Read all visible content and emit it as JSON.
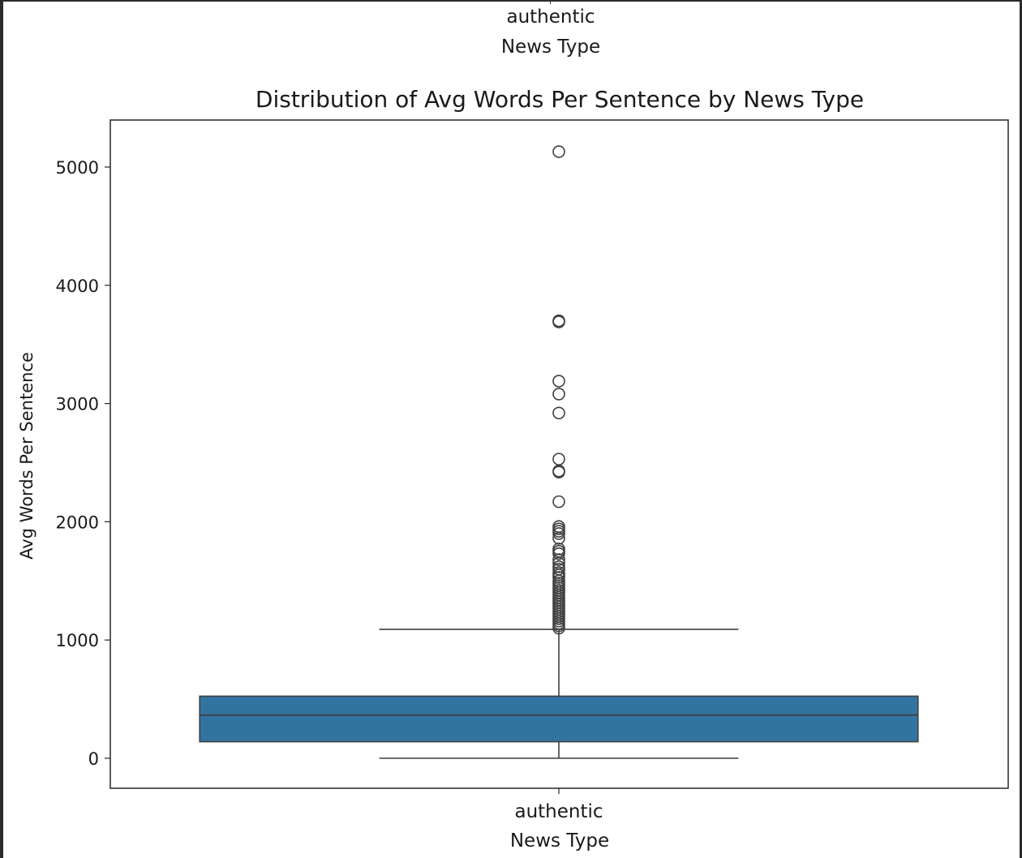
{
  "previous_plot": {
    "tick_label": "authentic",
    "xlabel": "News Type"
  },
  "chart_data": {
    "type": "box",
    "title": "Distribution of Avg Words Per Sentence by News Type",
    "xlabel": "News Type",
    "ylabel": "Avg Words Per Sentence",
    "categories": [
      "authentic"
    ],
    "ylim": [
      -250,
      5400
    ],
    "yticks": [
      0,
      1000,
      2000,
      3000,
      4000,
      5000
    ],
    "box_color": "#3274a1",
    "boxes": [
      {
        "category": "authentic",
        "whisker_low": 0,
        "q1": 140,
        "median": 365,
        "q3": 525,
        "whisker_high": 1090,
        "outliers": [
          5130,
          3700,
          3690,
          3190,
          3080,
          2920,
          2530,
          2430,
          2420,
          2170,
          1960,
          1940,
          1920,
          1900,
          1860,
          1770,
          1750,
          1730,
          1680,
          1650,
          1620,
          1600,
          1570,
          1550,
          1530,
          1500,
          1480,
          1460,
          1440,
          1420,
          1400,
          1380,
          1360,
          1340,
          1320,
          1300,
          1280,
          1260,
          1240,
          1220,
          1200,
          1180,
          1160,
          1140,
          1120,
          1100
        ]
      }
    ],
    "grid": false,
    "legend": "none"
  }
}
